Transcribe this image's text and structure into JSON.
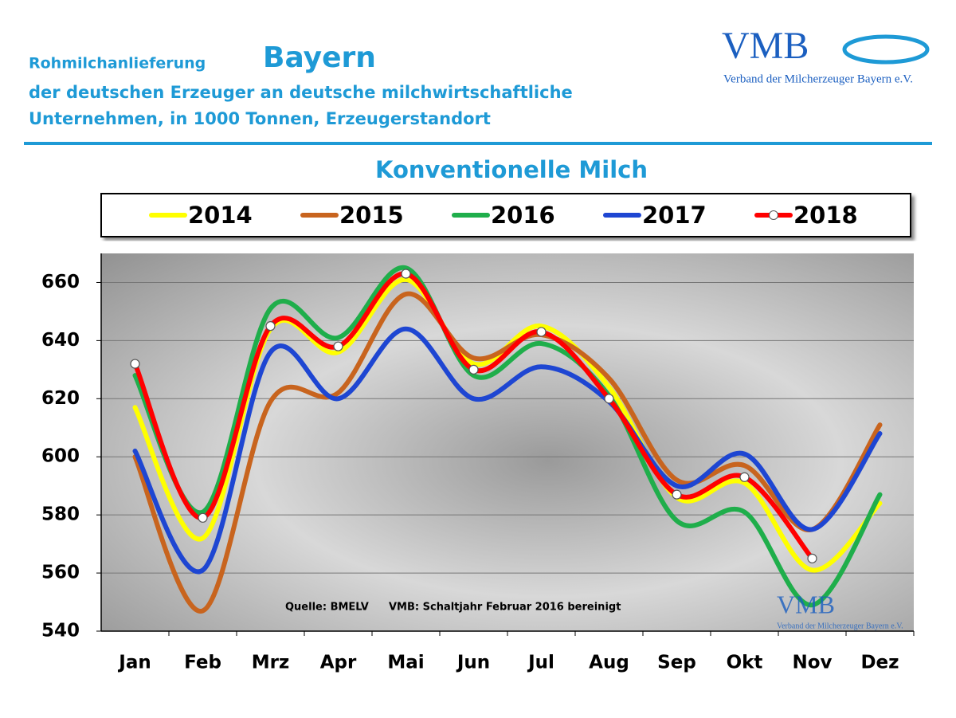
{
  "chart_data": {
    "type": "line",
    "title": "Rohmilchanlieferung",
    "title_region": "Bayern",
    "subtitle": [
      "der deutschen Erzeuger an deutsche milchwirtschaftliche",
      "Unternehmen, in 1000 Tonnen, Erzeugerstandort"
    ],
    "chart_title": "Konventionelle Milch",
    "source": "Quelle: BMELV",
    "note": "VMB: Schaltjahr  Februar  2016  bereinigt",
    "logo": {
      "name": "VMB",
      "text": "Verband der Milcherzeuger Bayern e.V."
    },
    "categories": [
      "Jan",
      "Feb",
      "Mrz",
      "Apr",
      "Mai",
      "Jun",
      "Jul",
      "Aug",
      "Sep",
      "Okt",
      "Nov",
      "Dez"
    ],
    "series": [
      {
        "name": "2014",
        "color": "#ffff00",
        "values": [
          617,
          572,
          644,
          636,
          661,
          632,
          645,
          624,
          586,
          591,
          561,
          584
        ]
      },
      {
        "name": "2015",
        "color": "#c8641e",
        "values": [
          600,
          547,
          619,
          622,
          656,
          634,
          642,
          627,
          592,
          597,
          575,
          611
        ]
      },
      {
        "name": "2016",
        "color": "#1fae4b",
        "values": [
          628,
          581,
          651,
          641,
          665,
          628,
          639,
          621,
          578,
          581,
          549,
          587
        ]
      },
      {
        "name": "2017",
        "color": "#1e46d2",
        "values": [
          602,
          561,
          636,
          620,
          644,
          620,
          631,
          619,
          590,
          601,
          575,
          608
        ]
      },
      {
        "name": "2018",
        "color": "#ff0000",
        "markers": true,
        "values": [
          632,
          579,
          645,
          638,
          663,
          630,
          643,
          620,
          587,
          593,
          565,
          null
        ]
      }
    ],
    "ylim": [
      540,
      670
    ],
    "yticks": [
      540,
      560,
      580,
      600,
      620,
      640,
      660
    ],
    "grid": true
  }
}
